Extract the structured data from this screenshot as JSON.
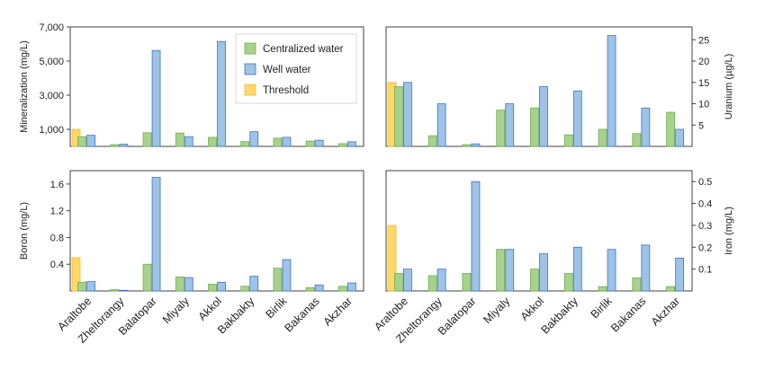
{
  "colors": {
    "centralized": "#a9d18e",
    "centralized_edge": "#70ad47",
    "well": "#9dc3e6",
    "well_edge": "#4472c4",
    "threshold": "#ffd966",
    "threshold_edge": "#f4b942",
    "axis": "#404040"
  },
  "legend": {
    "placement": "top-right of top-left panel",
    "items": [
      {
        "key": "centralized",
        "label": "Centralized water"
      },
      {
        "key": "well",
        "label": "Well water"
      },
      {
        "key": "threshold",
        "label": "Threshold"
      }
    ]
  },
  "chart_data": [
    {
      "type": "bar",
      "panel": "top-left",
      "ylabel": "Mineralization (mg/L)",
      "ylabel_side": "left",
      "ylim": [
        0,
        7000
      ],
      "yticks": [
        1000,
        3000,
        5000,
        7000
      ],
      "ytick_labels": [
        "1,000",
        "3,000",
        "5,000",
        "7,000"
      ],
      "categories": [
        "Araltobe",
        "Zheltorangy",
        "Balatopar",
        "Miyaly",
        "Akkol",
        "Bakbakty",
        "Birlik",
        "Bakanas",
        "Akzhar"
      ],
      "threshold": {
        "category": "Araltobe",
        "value": 1000
      },
      "series": [
        {
          "name": "Centralized water",
          "values": [
            570,
            100,
            800,
            780,
            530,
            280,
            480,
            310,
            160
          ]
        },
        {
          "name": "Well water",
          "values": [
            650,
            130,
            5620,
            570,
            6150,
            860,
            530,
            360,
            270
          ]
        }
      ]
    },
    {
      "type": "bar",
      "panel": "top-right",
      "ylabel": "Uranium (µg/L)",
      "ylabel_side": "right",
      "ylim": [
        0,
        28
      ],
      "yticks": [
        5,
        10,
        15,
        20,
        25
      ],
      "ytick_labels": [
        "5",
        "10",
        "15",
        "20",
        "25"
      ],
      "categories": [
        "Araltobe",
        "Zheltorangy",
        "Balatopar",
        "Miyaly",
        "Akkol",
        "Bakbakty",
        "Birlik",
        "Bakanas",
        "Akzhar"
      ],
      "threshold": {
        "category": "Araltobe",
        "value": 15
      },
      "series": [
        {
          "name": "Centralized water",
          "values": [
            14,
            2.5,
            0.4,
            8.5,
            9,
            2.7,
            4,
            3,
            8
          ]
        },
        {
          "name": "Well water",
          "values": [
            15,
            10,
            0.6,
            10,
            14,
            13,
            26,
            9,
            4
          ]
        }
      ]
    },
    {
      "type": "bar",
      "panel": "bottom-left",
      "ylabel": "Boron (mg/L)",
      "ylabel_side": "left",
      "ylim": [
        0,
        1.8
      ],
      "yticks": [
        0.4,
        0.8,
        1.2,
        1.6
      ],
      "ytick_labels": [
        "0.4",
        "0.8",
        "1.2",
        "1.6"
      ],
      "categories": [
        "Araltobe",
        "Zheltorangy",
        "Balatopar",
        "Miyaly",
        "Akkol",
        "Bakbakty",
        "Birlik",
        "Bakanas",
        "Akzhar"
      ],
      "threshold": {
        "category": "Araltobe",
        "value": 0.5
      },
      "series": [
        {
          "name": "Centralized water",
          "values": [
            0.13,
            0.02,
            0.4,
            0.21,
            0.1,
            0.07,
            0.34,
            0.05,
            0.07
          ]
        },
        {
          "name": "Well water",
          "values": [
            0.14,
            0.01,
            1.7,
            0.2,
            0.13,
            0.22,
            0.47,
            0.09,
            0.12
          ]
        }
      ]
    },
    {
      "type": "bar",
      "panel": "bottom-right",
      "ylabel": "Iron (mg/L)",
      "ylabel_side": "right",
      "ylim": [
        0,
        0.55
      ],
      "yticks": [
        0.1,
        0.2,
        0.3,
        0.4,
        0.5
      ],
      "ytick_labels": [
        "0.1",
        "0.2",
        "0.3",
        "0.4",
        "0.5"
      ],
      "categories": [
        "Araltobe",
        "Zheltorangy",
        "Balatopar",
        "Miyaly",
        "Akkol",
        "Bakbakty",
        "Birlik",
        "Bakanas",
        "Akzhar"
      ],
      "threshold": {
        "category": "Araltobe",
        "value": 0.3
      },
      "series": [
        {
          "name": "Centralized water",
          "values": [
            0.08,
            0.07,
            0.08,
            0.19,
            0.1,
            0.08,
            0.02,
            0.06,
            0.02
          ]
        },
        {
          "name": "Well water",
          "values": [
            0.1,
            0.1,
            0.5,
            0.19,
            0.17,
            0.2,
            0.19,
            0.21,
            0.15
          ]
        }
      ]
    }
  ]
}
